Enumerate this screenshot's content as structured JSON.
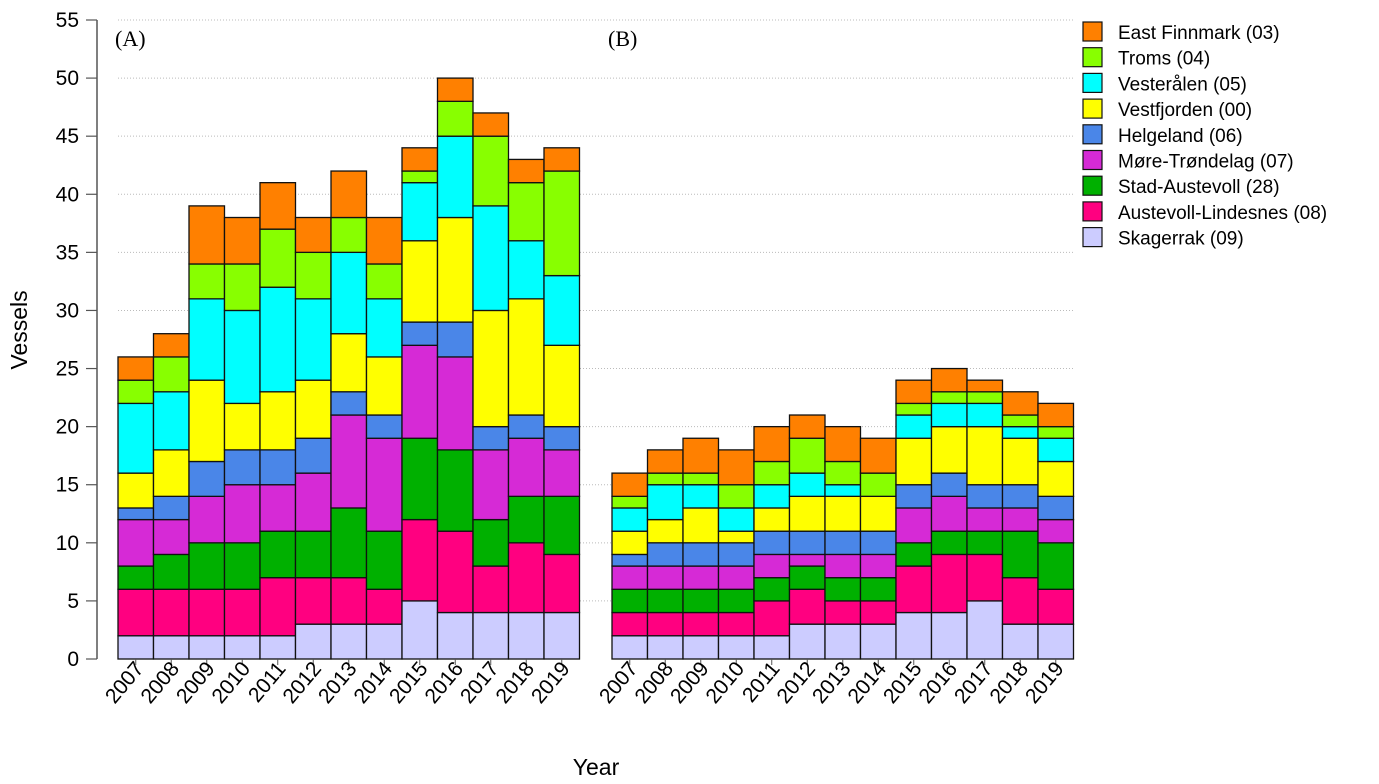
{
  "chart_data": [
    {
      "type": "bar",
      "stacked": true,
      "panel_label": "(A)",
      "xlabel": "Year",
      "ylabel": "Vessels",
      "ylim": [
        0,
        55
      ],
      "yticks": [
        0,
        5,
        10,
        15,
        20,
        25,
        30,
        35,
        40,
        45,
        50,
        55
      ],
      "grid": "horizontal dotted",
      "categories": [
        "2007",
        "2008",
        "2009",
        "2010",
        "2011",
        "2012",
        "2013",
        "2014",
        "2015",
        "2016",
        "2017",
        "2018",
        "2019"
      ],
      "series": [
        {
          "name": "Skagerrak (09)",
          "color": "#CCCCFF",
          "values": [
            2,
            2,
            2,
            2,
            2,
            3,
            3,
            3,
            5,
            4,
            4,
            4,
            4
          ]
        },
        {
          "name": "Austevoll-Lindesnes (08)",
          "color": "#FF0080",
          "values": [
            4,
            4,
            4,
            4,
            5,
            4,
            4,
            3,
            7,
            7,
            4,
            6,
            5
          ]
        },
        {
          "name": "Stad-Austevoll (28)",
          "color": "#00B000",
          "values": [
            2,
            3,
            4,
            4,
            4,
            4,
            6,
            5,
            7,
            7,
            4,
            4,
            5
          ]
        },
        {
          "name": "Møre-Trøndelag (07)",
          "color": "#D62AD6",
          "values": [
            4,
            3,
            4,
            5,
            4,
            5,
            8,
            8,
            8,
            8,
            6,
            5,
            4
          ]
        },
        {
          "name": "Helgeland (06)",
          "color": "#4A86E8",
          "values": [
            1,
            2,
            3,
            3,
            3,
            3,
            2,
            2,
            2,
            3,
            2,
            2,
            2
          ]
        },
        {
          "name": "Vestfjorden (00)",
          "color": "#FFFF00",
          "values": [
            3,
            4,
            7,
            4,
            5,
            5,
            5,
            5,
            7,
            9,
            10,
            10,
            7
          ]
        },
        {
          "name": "Vesterålen (05)",
          "color": "#00FFFF",
          "values": [
            6,
            5,
            7,
            8,
            9,
            7,
            7,
            5,
            5,
            7,
            9,
            5,
            6
          ]
        },
        {
          "name": "Troms (04)",
          "color": "#88FF00",
          "values": [
            2,
            3,
            3,
            4,
            5,
            4,
            3,
            3,
            1,
            3,
            6,
            5,
            9
          ]
        },
        {
          "name": "East Finnmark (03)",
          "color": "#FF8000",
          "values": [
            2,
            2,
            5,
            4,
            4,
            3,
            4,
            4,
            2,
            2,
            2,
            2,
            2
          ]
        }
      ]
    },
    {
      "type": "bar",
      "stacked": true,
      "panel_label": "(B)",
      "xlabel": "Year",
      "ylabel": "Vessels",
      "ylim": [
        0,
        55
      ],
      "grid": "horizontal dotted",
      "categories": [
        "2007",
        "2008",
        "2009",
        "2010",
        "2011",
        "2012",
        "2013",
        "2014",
        "2015",
        "2016",
        "2017",
        "2018",
        "2019"
      ],
      "series": [
        {
          "name": "Skagerrak (09)",
          "color": "#CCCCFF",
          "values": [
            2,
            2,
            2,
            2,
            2,
            3,
            3,
            3,
            4,
            4,
            5,
            3,
            3
          ]
        },
        {
          "name": "Austevoll-Lindesnes (08)",
          "color": "#FF0080",
          "values": [
            2,
            2,
            2,
            2,
            3,
            3,
            2,
            2,
            4,
            5,
            4,
            4,
            3
          ]
        },
        {
          "name": "Stad-Austevoll (28)",
          "color": "#00B000",
          "values": [
            2,
            2,
            2,
            2,
            2,
            2,
            2,
            2,
            2,
            2,
            2,
            4,
            4
          ]
        },
        {
          "name": "Møre-Trøndelag (07)",
          "color": "#D62AD6",
          "values": [
            2,
            2,
            2,
            2,
            2,
            1,
            2,
            2,
            3,
            3,
            2,
            2,
            2
          ]
        },
        {
          "name": "Helgeland (06)",
          "color": "#4A86E8",
          "values": [
            1,
            2,
            2,
            2,
            2,
            2,
            2,
            2,
            2,
            2,
            2,
            2,
            2
          ]
        },
        {
          "name": "Vestfjorden (00)",
          "color": "#FFFF00",
          "values": [
            2,
            2,
            3,
            1,
            2,
            3,
            3,
            3,
            4,
            4,
            5,
            4,
            3
          ]
        },
        {
          "name": "Vesterålen (05)",
          "color": "#00FFFF",
          "values": [
            2,
            3,
            2,
            2,
            2,
            2,
            1,
            0,
            2,
            2,
            2,
            1,
            2
          ]
        },
        {
          "name": "Troms (04)",
          "color": "#88FF00",
          "values": [
            1,
            1,
            1,
            2,
            2,
            3,
            2,
            2,
            1,
            1,
            1,
            1,
            1
          ]
        },
        {
          "name": "East Finnmark (03)",
          "color": "#FF8000",
          "values": [
            2,
            2,
            3,
            3,
            3,
            2,
            3,
            3,
            2,
            2,
            1,
            2,
            2
          ]
        }
      ]
    }
  ],
  "legend": {
    "placement": "top-right",
    "items": [
      "East Finnmark (03)",
      "Troms (04)",
      "Vesterålen (05)",
      "Vestfjorden (00)",
      "Helgeland (06)",
      "Møre-Trøndelag (07)",
      "Stad-Austevoll (28)",
      "Austevoll-Lindesnes (08)",
      "Skagerrak (09)"
    ],
    "colors": [
      "#FF8000",
      "#88FF00",
      "#00FFFF",
      "#FFFF00",
      "#4A86E8",
      "#D62AD6",
      "#00B000",
      "#FF0080",
      "#CCCCFF"
    ]
  }
}
